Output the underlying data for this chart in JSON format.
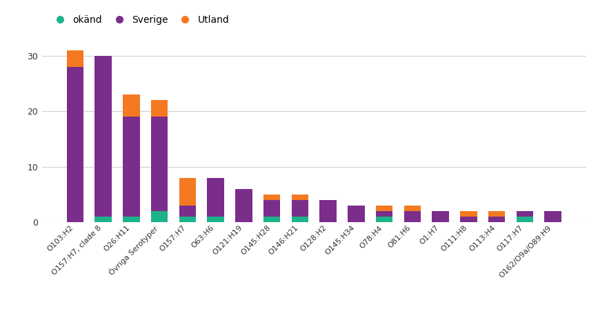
{
  "categories": [
    "O103:H2",
    "O157:H7, clade 8",
    "O26:H11",
    "Övriga Serotyper",
    "O157:H7",
    "O63:H6",
    "O121:H19",
    "O145:H28",
    "O146:H21",
    "O128:H2",
    "O145:H34",
    "O78:H4",
    "O81:H6",
    "O1:H7",
    "O111:H8",
    "O113:H4",
    "O117:H7",
    "O162/O9a/O89:H9"
  ],
  "okand": [
    0,
    1,
    1,
    2,
    1,
    1,
    0,
    1,
    1,
    0,
    0,
    1,
    0,
    0,
    0,
    0,
    1,
    0
  ],
  "sverige": [
    28,
    29,
    18,
    17,
    2,
    7,
    6,
    3,
    3,
    4,
    3,
    1,
    2,
    2,
    1,
    1,
    1,
    2
  ],
  "utland": [
    3,
    0,
    4,
    3,
    5,
    0,
    0,
    1,
    1,
    0,
    0,
    1,
    1,
    0,
    1,
    1,
    0,
    0
  ],
  "color_okand": "#1db38a",
  "color_sverige": "#7b2d8b",
  "color_utland": "#f47920",
  "legend_labels": [
    "okänd",
    "Sverige",
    "Utland"
  ],
  "ylim": [
    0,
    33
  ],
  "yticks": [
    0,
    10,
    20,
    30
  ],
  "background_color": "#ffffff",
  "grid_color": "#d0d0d0",
  "bar_width": 0.6
}
